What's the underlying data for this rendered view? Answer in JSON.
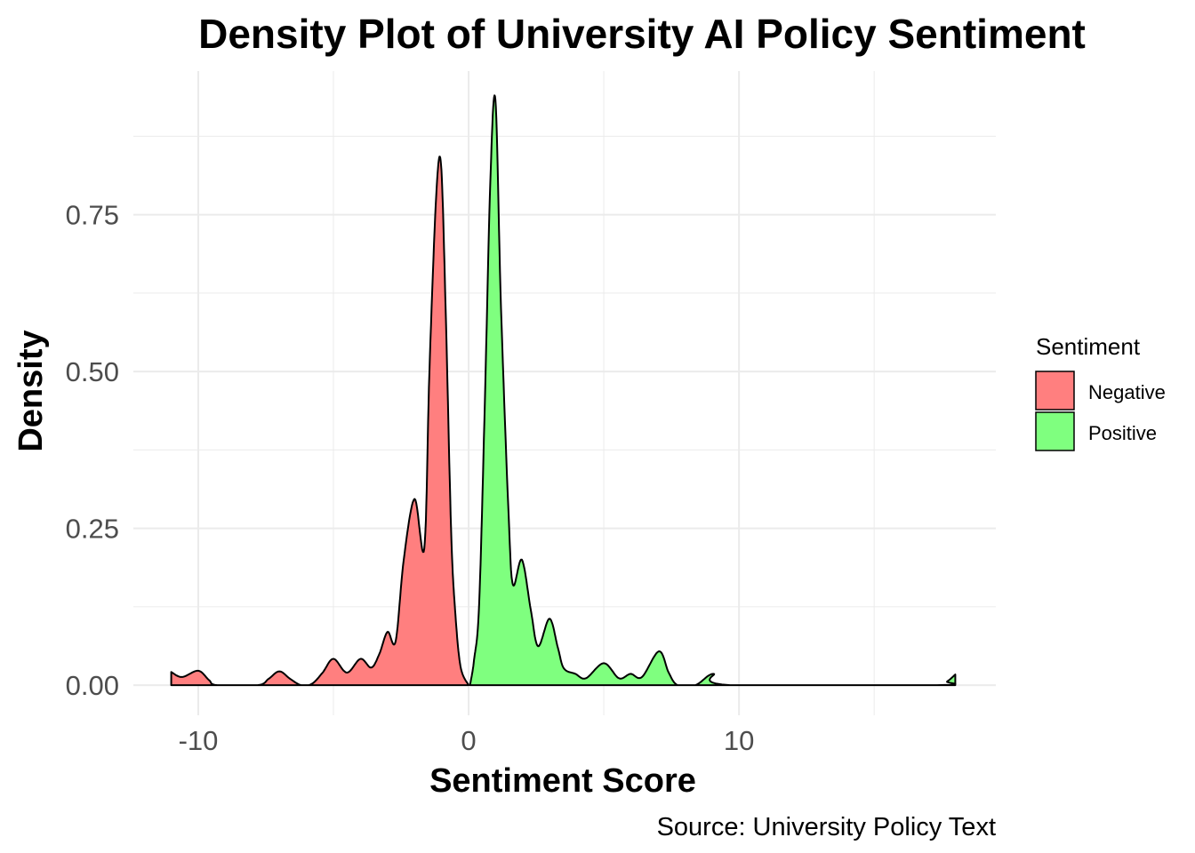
{
  "chart_data": {
    "type": "area",
    "title": "Density Plot of University AI Policy Sentiment",
    "xlabel": "Sentiment Score",
    "ylabel": "Density",
    "caption": "Source: University Policy Text",
    "xlim": [
      -12.4,
      19.5
    ],
    "ylim": [
      -0.048,
      0.979
    ],
    "x_ticks": [
      -10,
      0,
      10
    ],
    "x_tick_labels": [
      "-10",
      "0",
      "10"
    ],
    "y_ticks": [
      0,
      0.25,
      0.5,
      0.75
    ],
    "y_tick_labels": [
      "0.00",
      "0.25",
      "0.50",
      "0.75"
    ],
    "grid": true,
    "legend": {
      "title": "Sentiment",
      "position": "right"
    },
    "series": [
      {
        "name": "Negative",
        "color": "#FF7F7F",
        "points": [
          [
            -11,
            0.021
          ],
          [
            -10.6,
            0.013
          ],
          [
            -10,
            0.023
          ],
          [
            -9.6,
            0.008
          ],
          [
            -9.3,
            0
          ],
          [
            -7.8,
            0
          ],
          [
            -7.4,
            0.01
          ],
          [
            -7,
            0.022
          ],
          [
            -6.6,
            0.01
          ],
          [
            -6.2,
            0
          ],
          [
            -5.8,
            0.002
          ],
          [
            -5.4,
            0.02
          ],
          [
            -5,
            0.042
          ],
          [
            -4.5,
            0.02
          ],
          [
            -4,
            0.042
          ],
          [
            -3.6,
            0.028
          ],
          [
            -3.3,
            0.05
          ],
          [
            -3,
            0.085
          ],
          [
            -2.7,
            0.07
          ],
          [
            -2.4,
            0.2
          ],
          [
            -2,
            0.297
          ],
          [
            -1.64,
            0.218
          ],
          [
            -1.45,
            0.5
          ],
          [
            -1.2,
            0.78
          ],
          [
            -1.02,
            0.83
          ],
          [
            -0.85,
            0.6
          ],
          [
            -0.65,
            0.25
          ],
          [
            -0.5,
            0.12
          ],
          [
            -0.3,
            0.03
          ],
          [
            0,
            0
          ]
        ]
      },
      {
        "name": "Positive",
        "color": "#7FFF7F",
        "points": [
          [
            0.05,
            0
          ],
          [
            0.2,
            0.04
          ],
          [
            0.39,
            0.13
          ],
          [
            0.6,
            0.45
          ],
          [
            0.8,
            0.8
          ],
          [
            0.99,
            0.933
          ],
          [
            1.2,
            0.6
          ],
          [
            1.48,
            0.27
          ],
          [
            1.64,
            0.16
          ],
          [
            1.97,
            0.2
          ],
          [
            2.3,
            0.12
          ],
          [
            2.57,
            0.062
          ],
          [
            2.99,
            0.106
          ],
          [
            3.3,
            0.06
          ],
          [
            3.52,
            0.027
          ],
          [
            3.95,
            0.018
          ],
          [
            4.34,
            0.011
          ],
          [
            5,
            0.035
          ],
          [
            5.56,
            0.011
          ],
          [
            5.99,
            0.018
          ],
          [
            6.41,
            0.013
          ],
          [
            7.04,
            0.054
          ],
          [
            7.4,
            0.02
          ],
          [
            7.73,
            0
          ],
          [
            8.39,
            0
          ],
          [
            9.05,
            0.018
          ],
          [
            9.67,
            0
          ],
          [
            17.33,
            0
          ],
          [
            17.7,
            0.006
          ],
          [
            18,
            0.017
          ]
        ]
      }
    ]
  }
}
